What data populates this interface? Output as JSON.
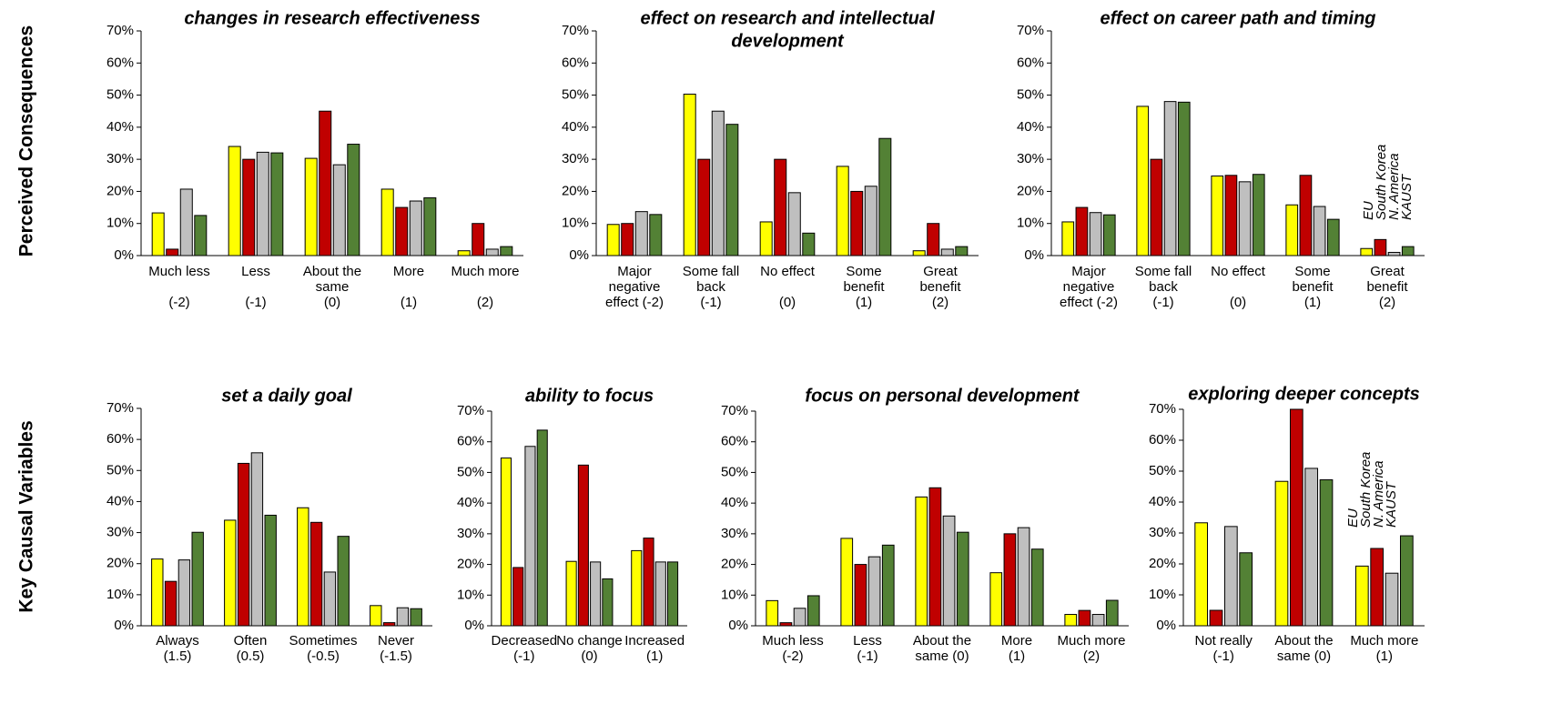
{
  "row_labels": [
    "Perceived Consequences",
    "Key Causal Variables"
  ],
  "chart_data": [
    {
      "type": "bar",
      "title": [
        "changes in research effectiveness"
      ],
      "categories": [
        [
          "Much less",
          "(-2)"
        ],
        [
          "Less",
          "(-1)"
        ],
        [
          "About the",
          "same",
          "(0)"
        ],
        [
          "More",
          "(1)"
        ],
        [
          "Much more",
          "(2)"
        ]
      ],
      "series": [
        {
          "color": "#ffff00",
          "values": [
            13.3,
            34,
            30.3,
            20.7,
            1.5
          ]
        },
        {
          "color": "#c00000",
          "values": [
            2,
            30,
            45,
            15,
            10
          ]
        },
        {
          "color": "#bfbfbf",
          "values": [
            20.7,
            32.2,
            28.3,
            17,
            2
          ]
        },
        {
          "color": "#538135",
          "values": [
            12.5,
            32,
            34.7,
            18,
            2.8
          ]
        }
      ],
      "ylim": [
        0,
        70
      ],
      "yticks": [
        {
          "value": 0,
          "label": "0%"
        },
        {
          "value": 10,
          "label": "10%"
        },
        {
          "value": 20,
          "label": "20%"
        },
        {
          "value": 30,
          "label": "30%"
        },
        {
          "value": 40,
          "label": "40%"
        },
        {
          "value": 50,
          "label": "50%"
        },
        {
          "value": 60,
          "label": "60%"
        },
        {
          "value": 70,
          "label": "70%"
        }
      ]
    },
    {
      "type": "bar",
      "title": [
        "effect on research and intellectual",
        "development"
      ],
      "categories": [
        [
          "Major",
          "negative",
          "effect (-2)"
        ],
        [
          "Some fall",
          "back",
          "(-1)"
        ],
        [
          "No effect",
          "(0)"
        ],
        [
          "Some",
          "benefit",
          "(1)"
        ],
        [
          "Great",
          "benefit",
          "(2)"
        ]
      ],
      "series": [
        {
          "color": "#ffff00",
          "values": [
            9.7,
            50.3,
            10.5,
            27.8,
            1.5
          ]
        },
        {
          "color": "#c00000",
          "values": [
            10,
            30,
            30,
            20,
            10
          ]
        },
        {
          "color": "#bfbfbf",
          "values": [
            13.7,
            45,
            19.6,
            21.6,
            2
          ]
        },
        {
          "color": "#538135",
          "values": [
            12.8,
            40.9,
            7,
            36.5,
            2.8
          ]
        }
      ],
      "ylim": [
        0,
        70
      ],
      "yticks": [
        {
          "value": 0,
          "label": "0%"
        },
        {
          "value": 10,
          "label": "10%"
        },
        {
          "value": 20,
          "label": "20%"
        },
        {
          "value": 30,
          "label": "30%"
        },
        {
          "value": 40,
          "label": "40%"
        },
        {
          "value": 50,
          "label": "50%"
        },
        {
          "value": 60,
          "label": "60%"
        },
        {
          "value": 70,
          "label": "70%"
        }
      ]
    },
    {
      "type": "bar",
      "title": [
        "effect on career path and timing"
      ],
      "categories": [
        [
          "Major",
          "negative",
          "effect (-2)"
        ],
        [
          "Some fall",
          "back",
          "(-1)"
        ],
        [
          "No effect",
          "(0)"
        ],
        [
          "Some",
          "benefit",
          "(1)"
        ],
        [
          "Great",
          "benefit",
          "(2)"
        ]
      ],
      "series": [
        {
          "name": "EU",
          "color": "#ffff00",
          "values": [
            10.5,
            46.5,
            24.8,
            15.8,
            2.2
          ]
        },
        {
          "name": "South Korea",
          "color": "#c00000",
          "values": [
            15,
            30,
            25,
            25,
            5
          ]
        },
        {
          "name": "N. America",
          "color": "#bfbfbf",
          "values": [
            13.4,
            48,
            23,
            15.3,
            1
          ]
        },
        {
          "name": "KAUST",
          "color": "#538135",
          "values": [
            12.7,
            47.8,
            25.3,
            11.3,
            2.8
          ]
        }
      ],
      "legend": "right",
      "ylim": [
        0,
        70
      ],
      "yticks": [
        {
          "value": 0,
          "label": "0%"
        },
        {
          "value": 10,
          "label": "10%"
        },
        {
          "value": 20,
          "label": "20%"
        },
        {
          "value": 30,
          "label": "30%"
        },
        {
          "value": 40,
          "label": "40%"
        },
        {
          "value": 50,
          "label": "50%"
        },
        {
          "value": 60,
          "label": "60%"
        },
        {
          "value": 70,
          "label": "70%"
        }
      ]
    },
    {
      "type": "bar",
      "title": [
        "set a daily goal"
      ],
      "categories": [
        [
          "Always",
          "(1.5)"
        ],
        [
          "Often",
          "(0.5)"
        ],
        [
          "Sometimes",
          "(-0.5)"
        ],
        [
          "Never",
          "(-1.5)"
        ]
      ],
      "series": [
        {
          "color": "#ffff00",
          "values": [
            21.5,
            34,
            38,
            6.5
          ]
        },
        {
          "color": "#c00000",
          "values": [
            14.3,
            52.3,
            33.3,
            1
          ]
        },
        {
          "color": "#bfbfbf",
          "values": [
            21.2,
            55.7,
            17.3,
            5.8
          ]
        },
        {
          "color": "#538135",
          "values": [
            30.1,
            35.6,
            28.8,
            5.5
          ]
        }
      ],
      "ylim": [
        0,
        70
      ],
      "yticks": [
        {
          "value": 0,
          "label": "0%"
        },
        {
          "value": 10,
          "label": "10%"
        },
        {
          "value": 20,
          "label": "20%"
        },
        {
          "value": 30,
          "label": "30%"
        },
        {
          "value": 40,
          "label": "40%"
        },
        {
          "value": 50,
          "label": "50%"
        },
        {
          "value": 60,
          "label": "60%"
        },
        {
          "value": 70,
          "label": "70%"
        }
      ]
    },
    {
      "type": "bar",
      "title": [
        "ability to focus"
      ],
      "categories": [
        [
          "Decreased",
          "(-1)"
        ],
        [
          "No change",
          "(0)"
        ],
        [
          "Increased",
          "(1)"
        ]
      ],
      "series": [
        {
          "color": "#ffff00",
          "values": [
            54.7,
            21,
            24.5
          ]
        },
        {
          "color": "#c00000",
          "values": [
            19,
            52.4,
            28.6
          ]
        },
        {
          "color": "#bfbfbf",
          "values": [
            58.5,
            20.8,
            20.8
          ]
        },
        {
          "color": "#538135",
          "values": [
            63.8,
            15.3,
            20.8
          ]
        }
      ],
      "ylim": [
        0,
        70
      ],
      "yticks": [
        {
          "value": 0,
          "label": "0%"
        },
        {
          "value": 10,
          "label": "10%"
        },
        {
          "value": 20,
          "label": "20%"
        },
        {
          "value": 30,
          "label": "30%"
        },
        {
          "value": 40,
          "label": "40%"
        },
        {
          "value": 50,
          "label": "50%"
        },
        {
          "value": 60,
          "label": "60%"
        },
        {
          "value": 70,
          "label": "70%"
        }
      ]
    },
    {
      "type": "bar",
      "title": [
        "focus on personal development"
      ],
      "categories": [
        [
          "Much less",
          "(-2)"
        ],
        [
          "Less",
          "(-1)"
        ],
        [
          "About the",
          "same (0)"
        ],
        [
          "More",
          "(1)"
        ],
        [
          "Much more",
          "(2)"
        ]
      ],
      "series": [
        {
          "color": "#ffff00",
          "values": [
            8.2,
            28.5,
            42,
            17.3,
            3.7
          ]
        },
        {
          "color": "#c00000",
          "values": [
            1,
            20,
            45,
            30,
            5
          ]
        },
        {
          "color": "#bfbfbf",
          "values": [
            5.7,
            22.5,
            35.8,
            32,
            3.7
          ]
        },
        {
          "color": "#538135",
          "values": [
            9.8,
            26.3,
            30.5,
            25,
            8.3
          ]
        }
      ],
      "ylim": [
        0,
        70
      ],
      "yticks": [
        {
          "value": 0,
          "label": "0%"
        },
        {
          "value": 10,
          "label": "10%"
        },
        {
          "value": 20,
          "label": "20%"
        },
        {
          "value": 30,
          "label": "30%"
        },
        {
          "value": 40,
          "label": "40%"
        },
        {
          "value": 50,
          "label": "50%"
        },
        {
          "value": 60,
          "label": "60%"
        },
        {
          "value": 70,
          "label": "70%"
        }
      ]
    },
    {
      "type": "bar",
      "title": [
        "exploring deeper concepts"
      ],
      "categories": [
        [
          "Not really",
          "(-1)"
        ],
        [
          "About the",
          "same (0)"
        ],
        [
          "Much more",
          "(1)"
        ]
      ],
      "series": [
        {
          "name": "EU",
          "color": "#ffff00",
          "values": [
            33.3,
            46.7,
            19.3
          ]
        },
        {
          "name": "South Korea",
          "color": "#c00000",
          "values": [
            5,
            70,
            25
          ]
        },
        {
          "name": "N. America",
          "color": "#bfbfbf",
          "values": [
            32.1,
            50.9,
            17
          ]
        },
        {
          "name": "KAUST",
          "color": "#538135",
          "values": [
            23.6,
            47.2,
            29.1
          ]
        }
      ],
      "legend": "right",
      "ylim": [
        0,
        70
      ],
      "yticks": [
        {
          "value": 0,
          "label": "0%"
        },
        {
          "value": 10,
          "label": "10%"
        },
        {
          "value": 20,
          "label": "20%"
        },
        {
          "value": 30,
          "label": "30%"
        },
        {
          "value": 40,
          "label": "40%"
        },
        {
          "value": 50,
          "label": "50%"
        },
        {
          "value": 60,
          "label": "60%"
        },
        {
          "value": 70,
          "label": "70%"
        }
      ]
    }
  ]
}
